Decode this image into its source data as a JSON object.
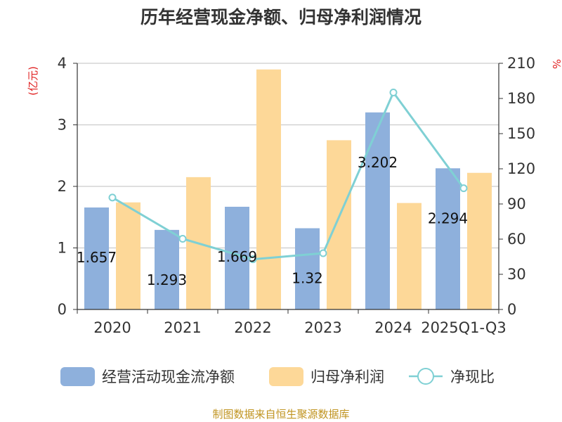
{
  "title": "历年经营现金净额、归母净利润情况",
  "left_unit": "(亿元)",
  "right_unit": "%",
  "source": "制图数据来自恒生聚源数据库",
  "colors": {
    "operating_cash": "#8eb0dc",
    "net_profit": "#fdd898",
    "ratio": "#7fd0d4",
    "unit_red": "#e02020",
    "source": "#c09420",
    "axis": "#333333",
    "grid": "#cccccc"
  },
  "chart_data": {
    "type": "bar",
    "title": "历年经营现金净额、归母净利润情况",
    "categories": [
      "2020",
      "2021",
      "2022",
      "2023",
      "2024",
      "2025Q1-Q3"
    ],
    "left_axis": {
      "unit": "(亿元)",
      "ylim": [
        0,
        4
      ],
      "ticks": [
        "0",
        "1",
        "2",
        "3",
        "4"
      ]
    },
    "right_axis": {
      "unit": "%",
      "ylim": [
        0,
        210
      ],
      "ticks": [
        "0",
        "30",
        "60",
        "90",
        "120",
        "150",
        "180",
        "210"
      ]
    },
    "series": [
      {
        "name": "经营活动现金流净额",
        "type": "bar",
        "axis": "left",
        "values": [
          1.657,
          1.293,
          1.669,
          1.32,
          3.202,
          2.294
        ],
        "labels": [
          "1.657",
          "1.293",
          "1.669",
          "1.32",
          "3.202",
          "2.294"
        ]
      },
      {
        "name": "归母净利润",
        "type": "bar",
        "axis": "left",
        "values": [
          1.74,
          2.15,
          3.9,
          2.75,
          1.73,
          2.22
        ]
      },
      {
        "name": "净现比",
        "type": "line",
        "axis": "right",
        "values": [
          95.5,
          60.3,
          42.8,
          48.0,
          185.1,
          103.4
        ]
      }
    ],
    "legend": "bottom",
    "grid": true
  }
}
